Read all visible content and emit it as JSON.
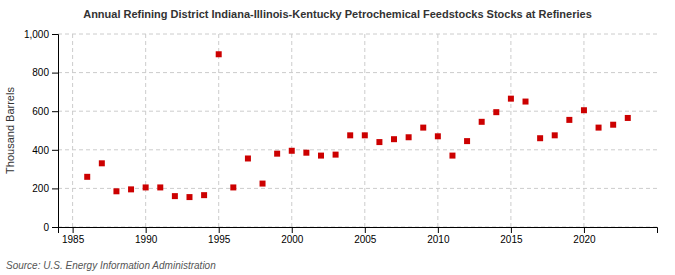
{
  "chart_data": {
    "type": "scatter",
    "title": "Annual Refining District Indiana-Illinois-Kentucky Petrochemical Feedstocks Stocks at Refineries",
    "ylabel": "Thousand Barrels",
    "source": "Source: U.S. Energy Information Administration",
    "color": "#cc0000",
    "marker": "square",
    "grid": true,
    "x": [
      1986,
      1987,
      1988,
      1989,
      1990,
      1991,
      1992,
      1993,
      1994,
      1995,
      1996,
      1997,
      1998,
      1999,
      2000,
      2001,
      2002,
      2003,
      2004,
      2005,
      2006,
      2007,
      2008,
      2009,
      2010,
      2011,
      2012,
      2013,
      2014,
      2015,
      2016,
      2017,
      2018,
      2019,
      2020,
      2021,
      2022,
      2023
    ],
    "values": [
      260,
      330,
      185,
      195,
      205,
      205,
      160,
      155,
      165,
      895,
      205,
      355,
      225,
      380,
      395,
      385,
      370,
      375,
      475,
      475,
      440,
      455,
      465,
      515,
      470,
      370,
      445,
      545,
      595,
      665,
      650,
      460,
      475,
      555,
      605,
      515,
      530,
      565
    ],
    "xlim": [
      1984,
      2025
    ],
    "xticks": [
      1985,
      1990,
      1995,
      2000,
      2005,
      2010,
      2015,
      2020
    ],
    "ylim": [
      0,
      1000
    ],
    "yticks": [
      0,
      200,
      400,
      600,
      800,
      {
        "value": 1000,
        "label": "1,000"
      }
    ]
  }
}
